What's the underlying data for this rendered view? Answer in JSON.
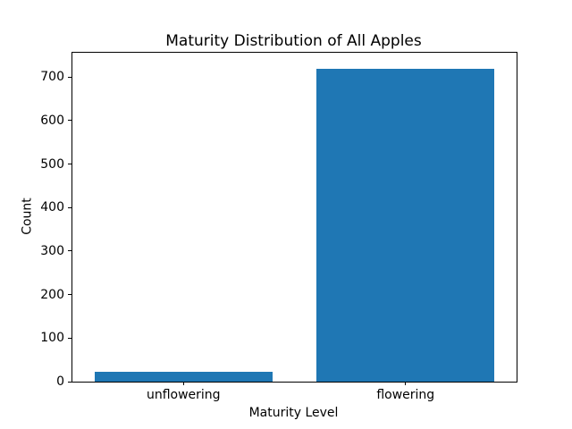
{
  "chart_data": {
    "type": "bar",
    "title": "Maturity Distribution of All Apples",
    "xlabel": "Maturity Level",
    "ylabel": "Count",
    "categories": [
      "unflowering",
      "flowering"
    ],
    "values": [
      22,
      720
    ],
    "yticks": [
      0,
      100,
      200,
      300,
      400,
      500,
      600,
      700
    ],
    "ylim": [
      0,
      756
    ],
    "bar_color": "#1f77b4",
    "background_color": "#ffffff",
    "spine_color": "#000000",
    "grid": false,
    "legend": false,
    "bar_width_fraction": 0.8
  }
}
